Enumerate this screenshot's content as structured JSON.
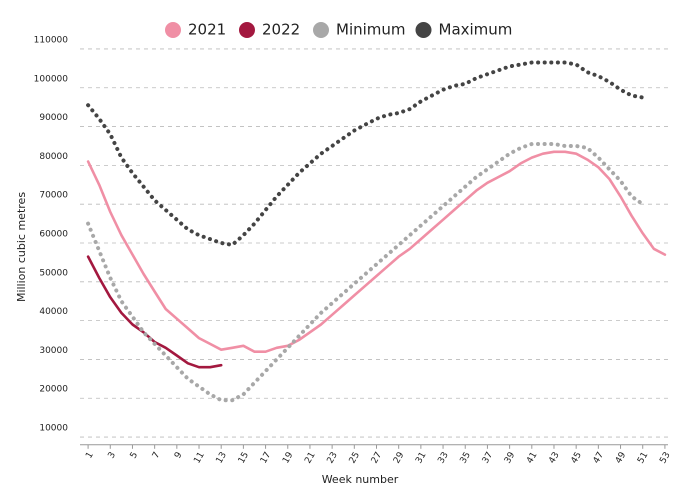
{
  "chart_data": {
    "type": "line",
    "y_label": "Million cubic metres",
    "x_label": "Week number",
    "x": [
      1,
      2,
      3,
      4,
      5,
      6,
      7,
      8,
      9,
      10,
      11,
      12,
      13,
      14,
      15,
      16,
      17,
      18,
      19,
      20,
      21,
      22,
      23,
      24,
      25,
      26,
      27,
      28,
      29,
      30,
      31,
      32,
      33,
      34,
      35,
      36,
      37,
      38,
      39,
      40,
      41,
      42,
      43,
      44,
      45,
      46,
      47,
      48,
      49,
      50,
      51,
      52,
      53
    ],
    "xlim": [
      0,
      54
    ],
    "xticks": [
      1,
      3,
      5,
      7,
      9,
      11,
      13,
      15,
      17,
      19,
      21,
      23,
      25,
      27,
      29,
      31,
      33,
      35,
      37,
      39,
      41,
      43,
      45,
      47,
      49,
      51,
      53
    ],
    "ylim": [
      8000,
      112000
    ],
    "yticks": [
      10000,
      20000,
      30000,
      40000,
      50000,
      60000,
      70000,
      80000,
      90000,
      100000,
      110000
    ],
    "grid": true,
    "legend": "top",
    "series": [
      {
        "name": "2021",
        "color": "#f08fa5",
        "style": "solid",
        "values": [
          81000,
          75000,
          68000,
          62000,
          57000,
          52000,
          47500,
          43000,
          40500,
          38000,
          35500,
          34000,
          32500,
          33000,
          33500,
          32000,
          32000,
          33000,
          33500,
          35000,
          37000,
          39000,
          41500,
          44000,
          46500,
          49000,
          51500,
          54000,
          56500,
          58500,
          61000,
          63500,
          66000,
          68500,
          71000,
          73500,
          75500,
          77000,
          78500,
          80500,
          82000,
          83000,
          83500,
          83500,
          83000,
          81500,
          79500,
          76500,
          72000,
          67000,
          62500,
          58500,
          57000
        ]
      },
      {
        "name": "2022",
        "color": "#a3183f",
        "style": "solid",
        "values": [
          56500,
          51000,
          46000,
          42000,
          39000,
          37000,
          34500,
          33000,
          31000,
          29000,
          28000,
          28000,
          28500,
          null,
          null,
          null,
          null,
          null,
          null,
          null,
          null,
          null,
          null,
          null,
          null,
          null,
          null,
          null,
          null,
          null,
          null,
          null,
          null,
          null,
          null,
          null,
          null,
          null,
          null,
          null,
          null,
          null,
          null,
          null,
          null,
          null,
          null,
          null,
          null,
          null,
          null,
          null,
          null
        ]
      },
      {
        "name": "Minimum",
        "color": "#a8a8a8",
        "style": "dotted",
        "values": [
          65000,
          58000,
          51000,
          45000,
          41000,
          37000,
          34000,
          31000,
          28000,
          25000,
          23000,
          21000,
          19500,
          19500,
          21000,
          24000,
          27000,
          30000,
          33000,
          36000,
          39000,
          42000,
          44500,
          47000,
          49500,
          52000,
          54500,
          57000,
          59500,
          62000,
          64500,
          67000,
          69500,
          72000,
          74500,
          77000,
          79000,
          81000,
          83000,
          84500,
          85500,
          85500,
          85500,
          85000,
          85000,
          84500,
          82000,
          79000,
          76000,
          72000,
          70000,
          null,
          null
        ]
      },
      {
        "name": "Maximum",
        "color": "#444444",
        "style": "dotted",
        "values": [
          95500,
          92000,
          88000,
          82000,
          78000,
          74500,
          71000,
          68500,
          66000,
          63500,
          62000,
          61000,
          60000,
          59500,
          62000,
          65000,
          68500,
          72000,
          75000,
          78000,
          80500,
          83000,
          85000,
          87000,
          89000,
          90500,
          92000,
          93000,
          93500,
          94500,
          96500,
          98000,
          99500,
          100500,
          101000,
          102500,
          103500,
          104500,
          105500,
          106000,
          106500,
          106500,
          106500,
          106500,
          106000,
          104000,
          103000,
          101500,
          99500,
          98000,
          97500,
          null,
          null
        ]
      }
    ]
  }
}
